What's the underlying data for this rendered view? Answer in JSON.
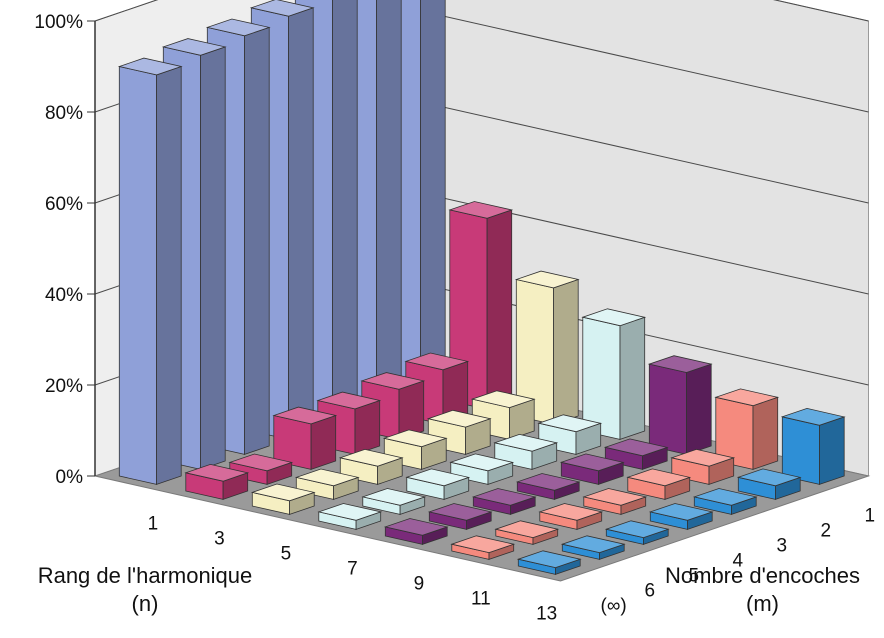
{
  "chart_data": {
    "type": "bar3d",
    "title": "",
    "zlabel": "",
    "zlim": [
      0,
      100
    ],
    "z_ticks": [
      "0%",
      "20%",
      "40%",
      "60%",
      "80%",
      "100%"
    ],
    "x_axis": {
      "title_line1": "Rang de l'harmonique",
      "title_line2": "(n)",
      "categories": [
        "1",
        "3",
        "5",
        "7",
        "9",
        "11",
        "13"
      ]
    },
    "depth_axis": {
      "title_line1": "Nombre d'encoches",
      "title_line2": "(m)",
      "categories": [
        "(∞)",
        "6",
        "5",
        "4",
        "3",
        "2",
        "1"
      ]
    },
    "series": [
      {
        "name": "(∞)",
        "values": [
          90,
          4,
          3,
          2,
          2,
          1.5,
          1.5
        ]
      },
      {
        "name": "6",
        "values": [
          91,
          3,
          3,
          2,
          2,
          1.5,
          1.5
        ]
      },
      {
        "name": "5",
        "values": [
          92,
          10,
          4,
          3,
          2,
          2,
          1.5
        ]
      },
      {
        "name": "4",
        "values": [
          93,
          10,
          5,
          3,
          2,
          2,
          2
        ]
      },
      {
        "name": "3",
        "values": [
          94,
          11,
          6,
          4,
          3,
          3,
          2
        ]
      },
      {
        "name": "2",
        "values": [
          95,
          12,
          7,
          5,
          3,
          4,
          3
        ]
      },
      {
        "name": "1",
        "values": [
          100,
          42,
          30,
          25,
          18,
          14,
          13
        ]
      }
    ],
    "colors": [
      "#8fa0d8",
      "#c83a78",
      "#f5efc2",
      "#d6f2f2",
      "#7a2a7a",
      "#f58a7e",
      "#2e8fd6"
    ],
    "wall_color": "#e3e3e3",
    "floor_color": "#9a9a9a"
  }
}
